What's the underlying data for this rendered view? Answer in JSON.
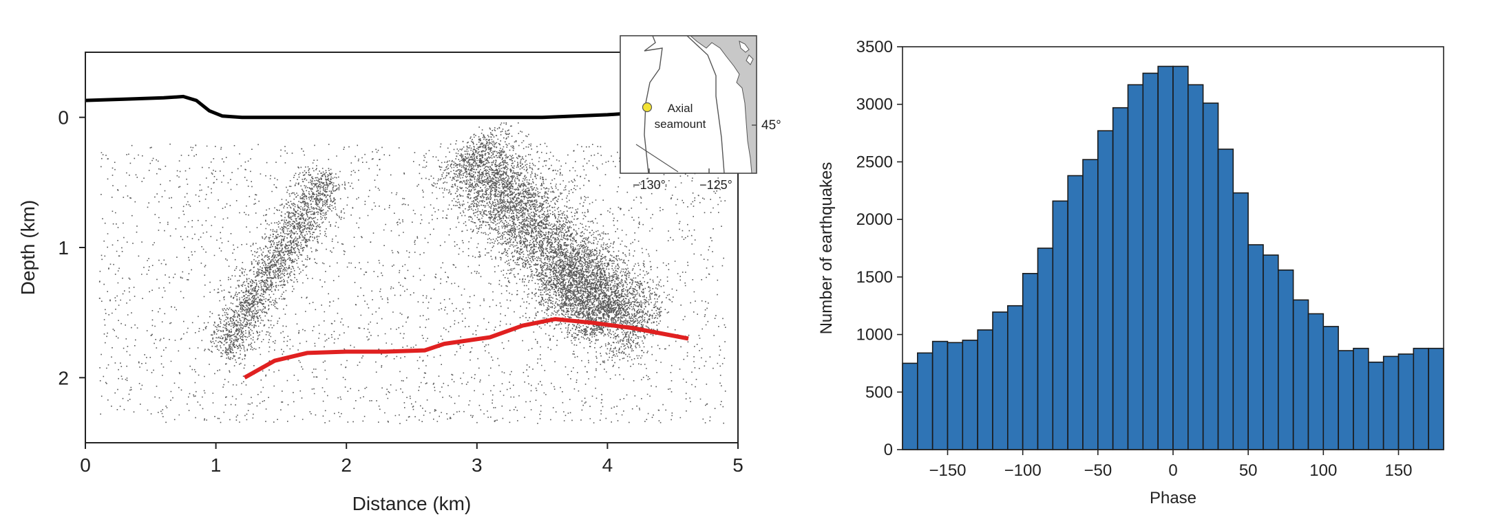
{
  "chart_data": [
    {
      "type": "scatter",
      "xlabel": "Distance (km)",
      "ylabel": "Depth (km)",
      "xlim": [
        0,
        5
      ],
      "ylim": [
        2.5,
        -0.5
      ],
      "x_ticks": [
        0,
        1,
        2,
        3,
        4,
        5
      ],
      "x_tick_labels": [
        "0",
        "1",
        "2",
        "3",
        "4",
        "5"
      ],
      "y_ticks": [
        0,
        1,
        2
      ],
      "y_tick_labels": [
        "0",
        "1",
        "2"
      ],
      "grid": false,
      "marker_color": "#555555",
      "seafloor_color": "#000000",
      "red_line_color": "#e02020",
      "seafloor_line": {
        "x": [
          0,
          0.3,
          0.6,
          0.75,
          0.85,
          0.95,
          1.05,
          1.2,
          1.5,
          2.0,
          2.5,
          3.0,
          3.5,
          4.0,
          4.15
        ],
        "y": [
          -0.13,
          -0.14,
          -0.15,
          -0.16,
          -0.13,
          -0.05,
          -0.01,
          0.0,
          0.0,
          0.0,
          0.0,
          0.0,
          0.0,
          -0.02,
          -0.03
        ]
      },
      "red_line": {
        "x": [
          1.22,
          1.45,
          1.7,
          2.0,
          2.3,
          2.6,
          2.75,
          3.1,
          3.35,
          3.6,
          3.9,
          4.2,
          4.62
        ],
        "y": [
          2.0,
          1.87,
          1.81,
          1.8,
          1.8,
          1.79,
          1.74,
          1.69,
          1.6,
          1.55,
          1.58,
          1.62,
          1.7
        ]
      },
      "clusters": [
        {
          "from": [
            1.05,
            1.8
          ],
          "to": [
            1.85,
            0.45
          ],
          "count": 2300,
          "width": 0.09
        },
        {
          "from": [
            2.9,
            0.25
          ],
          "to": [
            4.05,
            1.55
          ],
          "count": 5200,
          "width": 0.17
        },
        {
          "from": [
            3.6,
            1.15
          ],
          "to": [
            4.3,
            1.65
          ],
          "count": 1800,
          "width": 0.16
        }
      ],
      "background_points": 2600,
      "inset": {
        "label_line1": "Axial",
        "label_line2": "seamount",
        "lat_label": "45°",
        "lon_labels": [
          "−130°",
          "−125°"
        ],
        "land_color": "#c8c8c8",
        "marker_color": "#f2e234"
      }
    },
    {
      "type": "bar",
      "xlabel": "Phase",
      "ylabel": "Number of earthquakes",
      "xlim": [
        -180,
        180
      ],
      "ylim": [
        0,
        3500
      ],
      "bin_width": 10,
      "bin_edges_start": -180,
      "values": [
        750,
        840,
        940,
        930,
        950,
        1040,
        1195,
        1250,
        1530,
        1750,
        2160,
        2380,
        2520,
        2770,
        2970,
        3170,
        3270,
        3330,
        3330,
        3170,
        3010,
        2610,
        2230,
        1780,
        1690,
        1560,
        1300,
        1180,
        1070,
        860,
        880,
        760,
        810,
        830,
        880,
        880
      ],
      "x_ticks": [
        -150,
        -100,
        -50,
        0,
        50,
        100,
        150
      ],
      "x_tick_labels": [
        "−150",
        "−100",
        "−50",
        "0",
        "50",
        "100",
        "150"
      ],
      "y_ticks": [
        0,
        500,
        1000,
        1500,
        2000,
        2500,
        3000,
        3500
      ],
      "y_tick_labels": [
        "0",
        "500",
        "1000",
        "1500",
        "2000",
        "2500",
        "3000",
        "3500"
      ],
      "bar_color": "#2f74b5",
      "edge_color": "#1a1a1a",
      "grid": false
    }
  ]
}
